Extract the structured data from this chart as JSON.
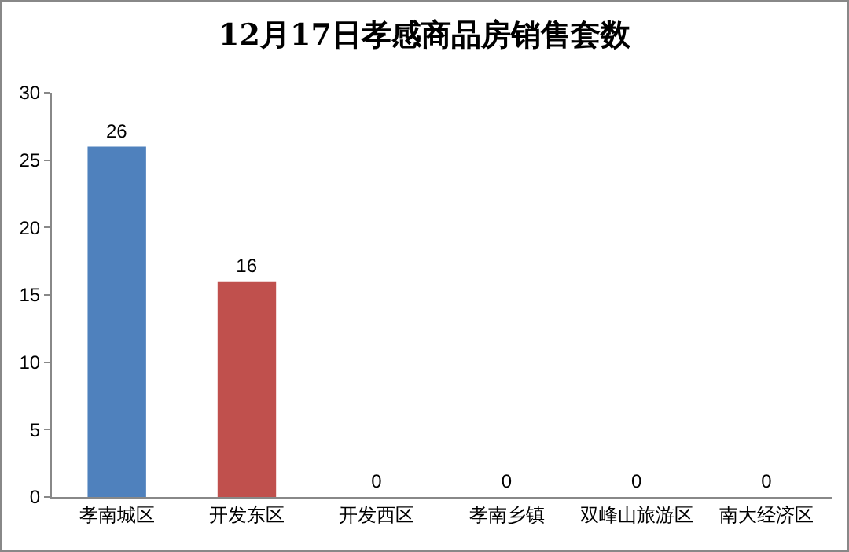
{
  "chart_data": {
    "type": "bar",
    "title": "12月17日孝感商品房销售套数",
    "categories": [
      "孝南城区",
      "开发东区",
      "开发西区",
      "孝南乡镇",
      "双峰山旅游区",
      "南大经济区"
    ],
    "values": [
      26,
      16,
      0,
      0,
      0,
      0
    ],
    "colors": [
      "#4f81bd",
      "#c0504d",
      "#4f81bd",
      "#4f81bd",
      "#4f81bd",
      "#4f81bd"
    ],
    "ylim": [
      0,
      30
    ],
    "yticks": [
      0,
      5,
      10,
      15,
      20,
      25,
      30
    ],
    "grid": false,
    "data_labels": true,
    "legend": false
  }
}
